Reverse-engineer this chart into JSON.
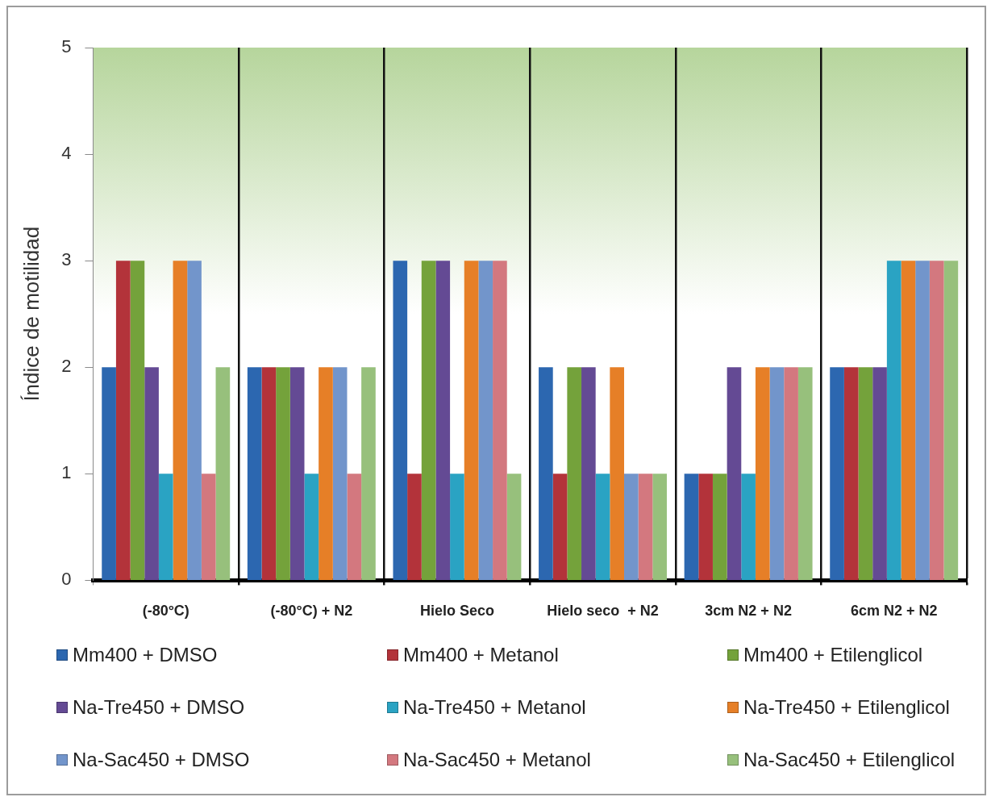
{
  "chart_data": {
    "type": "bar",
    "ylabel": "Índice de motilidad",
    "categories": [
      "(-80°C)",
      "(-80°C) + N2",
      "Hielo Seco",
      "Hielo seco  + N2",
      "3cm N2 + N2",
      "6cm N2 + N2"
    ],
    "series": [
      {
        "name": "Mm400 + DMSO",
        "color": "#2c67b0",
        "values": [
          2,
          2,
          3,
          2,
          1,
          2
        ]
      },
      {
        "name": "Mm400 + Metanol",
        "color": "#b3333a",
        "values": [
          3,
          2,
          1,
          1,
          1,
          2
        ]
      },
      {
        "name": "Mm400 + Etilenglicol",
        "color": "#74a23b",
        "values": [
          3,
          2,
          3,
          2,
          1,
          2
        ]
      },
      {
        "name": "Na-Tre450 + DMSO",
        "color": "#644a94",
        "values": [
          2,
          2,
          3,
          2,
          2,
          2
        ]
      },
      {
        "name": "Na-Tre450 + Metanol",
        "color": "#2aa3c3",
        "values": [
          1,
          1,
          1,
          1,
          1,
          3
        ]
      },
      {
        "name": "Na-Tre450 + Etilenglicol",
        "color": "#e67f27",
        "values": [
          3,
          2,
          3,
          2,
          2,
          3
        ]
      },
      {
        "name": "Na-Sac450 + DMSO",
        "color": "#7295cb",
        "values": [
          3,
          2,
          3,
          1,
          2,
          3
        ]
      },
      {
        "name": "Na-Sac450 + Metanol",
        "color": "#d3787f",
        "values": [
          1,
          1,
          3,
          1,
          2,
          3
        ]
      },
      {
        "name": "Na-Sac450 + Etilenglicol",
        "color": "#97c07c",
        "values": [
          2,
          2,
          1,
          1,
          2,
          3
        ]
      }
    ],
    "ylim": [
      0,
      5
    ],
    "yticks": [
      0,
      1,
      2,
      3,
      4,
      5
    ],
    "grid": "x",
    "legend": "bottom"
  }
}
